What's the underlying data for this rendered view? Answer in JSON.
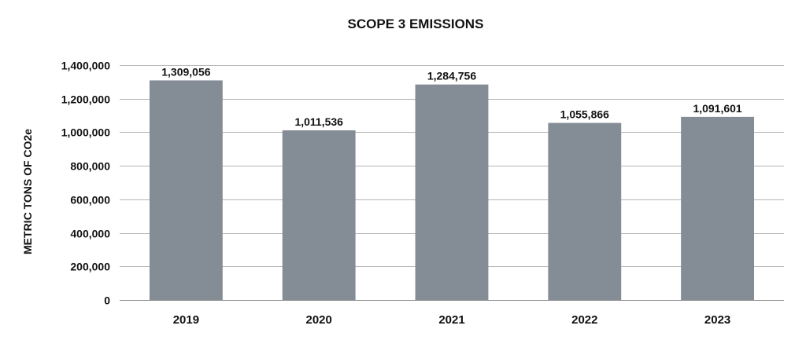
{
  "chart_data": {
    "type": "bar",
    "title": "SCOPE 3 EMISSIONS",
    "xlabel": "",
    "ylabel": "METRIC TONS OF CO2e",
    "categories": [
      "2019",
      "2020",
      "2021",
      "2022",
      "2023"
    ],
    "values": [
      1309056,
      1011536,
      1284756,
      1055866,
      1091601
    ],
    "value_labels": [
      "1,309,056",
      "1,011,536",
      "1,284,756",
      "1,055,866",
      "1,091,601"
    ],
    "ylim": [
      0,
      1400000
    ],
    "yticks": [
      0,
      200000,
      400000,
      600000,
      800000,
      1000000,
      1200000,
      1400000
    ],
    "ytick_labels": [
      "0",
      "200,000",
      "400,000",
      "600,000",
      "800,000",
      "1,000,000",
      "1,200,000",
      "1,400,000"
    ],
    "grid": true,
    "legend": "none",
    "bar_color": "#848c96"
  }
}
